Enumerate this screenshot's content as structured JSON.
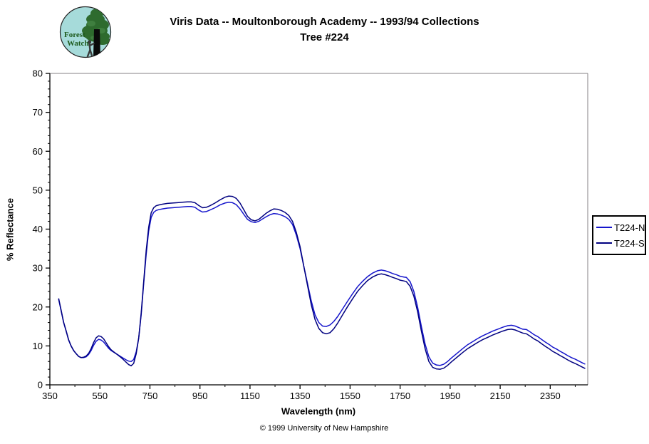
{
  "title": {
    "line1": "Viris Data -- Moultonborough Academy -- 1993/94 Collections",
    "line2": "Tree #224"
  },
  "logo": {
    "line1": "Forest",
    "line2": "Watch",
    "bg_color": "#a6dbda",
    "tree_color": "#2e6b2e",
    "trunk_color": "#0a0a0a",
    "text_color": "#1d5a1d"
  },
  "footer": {
    "copyright": "© 1999 University of New Hampshire"
  },
  "chart_data": {
    "type": "line",
    "title": "Viris Data -- Moultonborough Academy -- 1993/94 Collections Tree #224",
    "xlabel": "Wavelength (nm)",
    "ylabel": "% Reflectance",
    "xlim": [
      350,
      2500
    ],
    "ylim": [
      0,
      80
    ],
    "x_major_ticks": [
      350,
      550,
      750,
      950,
      1150,
      1350,
      1550,
      1750,
      1950,
      2150,
      2350
    ],
    "x_minor_step": 100,
    "y_major_ticks": [
      0,
      10,
      20,
      30,
      40,
      50,
      60,
      70,
      80
    ],
    "y_minor_step": 2,
    "grid": false,
    "legend_position": "right",
    "frame_color": "#848284",
    "axis_color": "#000000",
    "series": [
      {
        "name": "T224-N",
        "color": "#1515cc",
        "points": [
          [
            385,
            22.0
          ],
          [
            395,
            19.0
          ],
          [
            405,
            16.0
          ],
          [
            415,
            13.8
          ],
          [
            425,
            11.5
          ],
          [
            435,
            10.0
          ],
          [
            445,
            8.8
          ],
          [
            455,
            8.0
          ],
          [
            465,
            7.3
          ],
          [
            475,
            7.0
          ],
          [
            485,
            7.0
          ],
          [
            495,
            7.2
          ],
          [
            505,
            7.8
          ],
          [
            515,
            8.8
          ],
          [
            525,
            10.2
          ],
          [
            535,
            11.2
          ],
          [
            545,
            11.7
          ],
          [
            555,
            11.5
          ],
          [
            565,
            11.0
          ],
          [
            575,
            10.2
          ],
          [
            585,
            9.4
          ],
          [
            595,
            8.8
          ],
          [
            605,
            8.4
          ],
          [
            615,
            8.0
          ],
          [
            625,
            7.6
          ],
          [
            635,
            7.2
          ],
          [
            645,
            6.8
          ],
          [
            655,
            6.4
          ],
          [
            665,
            6.1
          ],
          [
            675,
            6.0
          ],
          [
            685,
            6.5
          ],
          [
            695,
            8.5
          ],
          [
            705,
            12.0
          ],
          [
            715,
            18.0
          ],
          [
            725,
            26.0
          ],
          [
            735,
            33.5
          ],
          [
            745,
            39.5
          ],
          [
            755,
            43.0
          ],
          [
            765,
            44.3
          ],
          [
            775,
            44.8
          ],
          [
            785,
            45.0
          ],
          [
            800,
            45.2
          ],
          [
            820,
            45.4
          ],
          [
            840,
            45.5
          ],
          [
            860,
            45.6
          ],
          [
            880,
            45.7
          ],
          [
            900,
            45.8
          ],
          [
            915,
            45.8
          ],
          [
            930,
            45.6
          ],
          [
            945,
            44.9
          ],
          [
            960,
            44.4
          ],
          [
            975,
            44.5
          ],
          [
            990,
            44.9
          ],
          [
            1010,
            45.5
          ],
          [
            1030,
            46.2
          ],
          [
            1050,
            46.7
          ],
          [
            1065,
            46.9
          ],
          [
            1080,
            46.8
          ],
          [
            1095,
            46.3
          ],
          [
            1110,
            45.2
          ],
          [
            1125,
            43.8
          ],
          [
            1140,
            42.5
          ],
          [
            1155,
            41.9
          ],
          [
            1170,
            41.7
          ],
          [
            1185,
            42.0
          ],
          [
            1200,
            42.6
          ],
          [
            1215,
            43.2
          ],
          [
            1230,
            43.7
          ],
          [
            1245,
            44.0
          ],
          [
            1260,
            43.9
          ],
          [
            1275,
            43.6
          ],
          [
            1290,
            43.2
          ],
          [
            1305,
            42.5
          ],
          [
            1320,
            41.2
          ],
          [
            1335,
            38.5
          ],
          [
            1350,
            35.0
          ],
          [
            1365,
            30.5
          ],
          [
            1380,
            26.0
          ],
          [
            1395,
            21.5
          ],
          [
            1410,
            18.0
          ],
          [
            1425,
            16.0
          ],
          [
            1440,
            15.1
          ],
          [
            1455,
            15.0
          ],
          [
            1470,
            15.4
          ],
          [
            1485,
            16.3
          ],
          [
            1500,
            17.5
          ],
          [
            1520,
            19.5
          ],
          [
            1540,
            21.5
          ],
          [
            1560,
            23.4
          ],
          [
            1580,
            25.2
          ],
          [
            1600,
            26.6
          ],
          [
            1620,
            27.8
          ],
          [
            1640,
            28.7
          ],
          [
            1660,
            29.3
          ],
          [
            1675,
            29.5
          ],
          [
            1690,
            29.3
          ],
          [
            1705,
            29.0
          ],
          [
            1720,
            28.6
          ],
          [
            1735,
            28.3
          ],
          [
            1750,
            27.9
          ],
          [
            1765,
            27.7
          ],
          [
            1775,
            27.6
          ],
          [
            1790,
            26.5
          ],
          [
            1805,
            24.0
          ],
          [
            1820,
            20.0
          ],
          [
            1835,
            15.0
          ],
          [
            1850,
            10.5
          ],
          [
            1865,
            7.2
          ],
          [
            1880,
            5.6
          ],
          [
            1895,
            5.1
          ],
          [
            1910,
            5.0
          ],
          [
            1925,
            5.3
          ],
          [
            1940,
            6.0
          ],
          [
            1955,
            6.9
          ],
          [
            1970,
            7.7
          ],
          [
            1985,
            8.5
          ],
          [
            2000,
            9.3
          ],
          [
            2020,
            10.3
          ],
          [
            2040,
            11.1
          ],
          [
            2060,
            11.9
          ],
          [
            2080,
            12.6
          ],
          [
            2100,
            13.2
          ],
          [
            2120,
            13.8
          ],
          [
            2140,
            14.3
          ],
          [
            2160,
            14.8
          ],
          [
            2180,
            15.2
          ],
          [
            2195,
            15.3
          ],
          [
            2210,
            15.1
          ],
          [
            2225,
            14.7
          ],
          [
            2240,
            14.3
          ],
          [
            2255,
            14.2
          ],
          [
            2270,
            13.6
          ],
          [
            2285,
            12.9
          ],
          [
            2300,
            12.4
          ],
          [
            2315,
            11.7
          ],
          [
            2330,
            11.0
          ],
          [
            2345,
            10.4
          ],
          [
            2360,
            9.7
          ],
          [
            2375,
            9.2
          ],
          [
            2390,
            8.6
          ],
          [
            2405,
            8.1
          ],
          [
            2420,
            7.5
          ],
          [
            2435,
            7.0
          ],
          [
            2450,
            6.6
          ],
          [
            2465,
            6.1
          ],
          [
            2480,
            5.6
          ],
          [
            2490,
            5.3
          ]
        ]
      },
      {
        "name": "T224-S",
        "color": "#000080",
        "points": [
          [
            385,
            22.2
          ],
          [
            395,
            19.2
          ],
          [
            405,
            16.1
          ],
          [
            415,
            13.9
          ],
          [
            425,
            11.6
          ],
          [
            435,
            10.0
          ],
          [
            445,
            8.8
          ],
          [
            455,
            8.0
          ],
          [
            465,
            7.3
          ],
          [
            475,
            7.0
          ],
          [
            485,
            7.1
          ],
          [
            495,
            7.4
          ],
          [
            505,
            8.1
          ],
          [
            515,
            9.3
          ],
          [
            525,
            10.9
          ],
          [
            535,
            12.1
          ],
          [
            545,
            12.6
          ],
          [
            555,
            12.4
          ],
          [
            565,
            11.8
          ],
          [
            575,
            10.8
          ],
          [
            585,
            9.8
          ],
          [
            595,
            9.0
          ],
          [
            605,
            8.5
          ],
          [
            615,
            8.0
          ],
          [
            625,
            7.5
          ],
          [
            635,
            7.0
          ],
          [
            645,
            6.4
          ],
          [
            655,
            5.8
          ],
          [
            665,
            5.2
          ],
          [
            675,
            4.9
          ],
          [
            685,
            5.5
          ],
          [
            695,
            8.0
          ],
          [
            705,
            12.0
          ],
          [
            715,
            18.5
          ],
          [
            725,
            26.5
          ],
          [
            735,
            34.5
          ],
          [
            745,
            40.5
          ],
          [
            755,
            44.2
          ],
          [
            765,
            45.5
          ],
          [
            775,
            46.0
          ],
          [
            785,
            46.2
          ],
          [
            800,
            46.4
          ],
          [
            820,
            46.6
          ],
          [
            840,
            46.7
          ],
          [
            860,
            46.8
          ],
          [
            880,
            46.9
          ],
          [
            900,
            47.0
          ],
          [
            915,
            47.0
          ],
          [
            930,
            46.8
          ],
          [
            945,
            46.1
          ],
          [
            960,
            45.5
          ],
          [
            975,
            45.6
          ],
          [
            990,
            46.0
          ],
          [
            1010,
            46.7
          ],
          [
            1030,
            47.5
          ],
          [
            1050,
            48.2
          ],
          [
            1065,
            48.5
          ],
          [
            1080,
            48.4
          ],
          [
            1095,
            47.9
          ],
          [
            1110,
            46.7
          ],
          [
            1125,
            45.0
          ],
          [
            1140,
            43.3
          ],
          [
            1155,
            42.4
          ],
          [
            1170,
            42.1
          ],
          [
            1185,
            42.5
          ],
          [
            1200,
            43.3
          ],
          [
            1215,
            44.1
          ],
          [
            1230,
            44.7
          ],
          [
            1245,
            45.2
          ],
          [
            1260,
            45.1
          ],
          [
            1275,
            44.8
          ],
          [
            1290,
            44.3
          ],
          [
            1305,
            43.5
          ],
          [
            1320,
            42.0
          ],
          [
            1335,
            39.2
          ],
          [
            1350,
            35.5
          ],
          [
            1365,
            30.5
          ],
          [
            1380,
            25.5
          ],
          [
            1395,
            20.5
          ],
          [
            1410,
            16.8
          ],
          [
            1425,
            14.5
          ],
          [
            1440,
            13.4
          ],
          [
            1455,
            13.1
          ],
          [
            1470,
            13.4
          ],
          [
            1485,
            14.4
          ],
          [
            1500,
            15.8
          ],
          [
            1520,
            18.0
          ],
          [
            1540,
            20.1
          ],
          [
            1560,
            22.1
          ],
          [
            1580,
            24.0
          ],
          [
            1600,
            25.5
          ],
          [
            1620,
            26.8
          ],
          [
            1640,
            27.7
          ],
          [
            1660,
            28.3
          ],
          [
            1675,
            28.5
          ],
          [
            1690,
            28.3
          ],
          [
            1705,
            28.0
          ],
          [
            1720,
            27.6
          ],
          [
            1735,
            27.3
          ],
          [
            1750,
            26.9
          ],
          [
            1765,
            26.7
          ],
          [
            1775,
            26.5
          ],
          [
            1790,
            25.3
          ],
          [
            1805,
            22.8
          ],
          [
            1820,
            18.8
          ],
          [
            1835,
            13.8
          ],
          [
            1850,
            9.3
          ],
          [
            1865,
            6.0
          ],
          [
            1880,
            4.5
          ],
          [
            1895,
            4.1
          ],
          [
            1910,
            4.0
          ],
          [
            1925,
            4.3
          ],
          [
            1940,
            5.0
          ],
          [
            1955,
            5.9
          ],
          [
            1970,
            6.7
          ],
          [
            1985,
            7.5
          ],
          [
            2000,
            8.3
          ],
          [
            2020,
            9.3
          ],
          [
            2040,
            10.1
          ],
          [
            2060,
            10.9
          ],
          [
            2080,
            11.6
          ],
          [
            2100,
            12.2
          ],
          [
            2120,
            12.8
          ],
          [
            2140,
            13.3
          ],
          [
            2160,
            13.8
          ],
          [
            2180,
            14.2
          ],
          [
            2195,
            14.3
          ],
          [
            2210,
            14.1
          ],
          [
            2225,
            13.7
          ],
          [
            2240,
            13.3
          ],
          [
            2255,
            13.1
          ],
          [
            2270,
            12.5
          ],
          [
            2285,
            11.8
          ],
          [
            2300,
            11.3
          ],
          [
            2315,
            10.6
          ],
          [
            2330,
            9.9
          ],
          [
            2345,
            9.3
          ],
          [
            2360,
            8.6
          ],
          [
            2375,
            8.1
          ],
          [
            2390,
            7.5
          ],
          [
            2405,
            7.0
          ],
          [
            2420,
            6.4
          ],
          [
            2435,
            5.9
          ],
          [
            2450,
            5.5
          ],
          [
            2465,
            5.0
          ],
          [
            2480,
            4.5
          ],
          [
            2490,
            4.2
          ]
        ]
      }
    ]
  }
}
